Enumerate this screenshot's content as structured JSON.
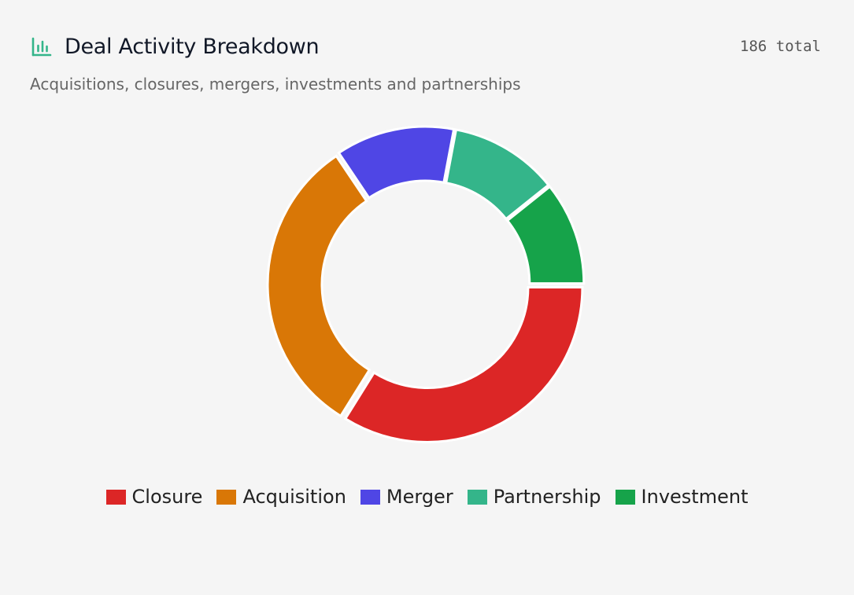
{
  "header": {
    "icon": "bar-chart-icon",
    "title": "Deal Activity Breakdown",
    "total_label": "186 total",
    "subtitle": "Acquisitions, closures, mergers, investments and partnerships"
  },
  "colors": {
    "accent": "#34b58a",
    "background": "#f5f5f5"
  },
  "chart_data": {
    "type": "pie",
    "variant": "donut",
    "total": 186,
    "legend_position": "bottom",
    "categories": [
      "Closure",
      "Acquisition",
      "Merger",
      "Partnership",
      "Investment"
    ],
    "values": [
      63,
      59,
      23,
      21,
      20
    ],
    "colors": [
      "#dc2626",
      "#d97706",
      "#4f46e5",
      "#34b58a",
      "#16a34a"
    ]
  }
}
